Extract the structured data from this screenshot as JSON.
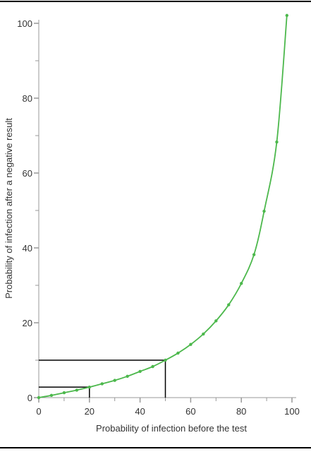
{
  "chart_data": {
    "type": "line",
    "title": "",
    "xlabel": "Probability of infection before the test",
    "ylabel": "Probability of infection after a negative result",
    "xlim": [
      0,
      100
    ],
    "ylim": [
      0,
      100
    ],
    "x_ticks": [
      0,
      20,
      40,
      60,
      80,
      100
    ],
    "y_ticks": [
      0,
      20,
      40,
      60,
      80,
      100
    ],
    "x_tick_labels": [
      "0",
      "20",
      "40",
      "60",
      "80",
      "100"
    ],
    "y_tick_labels": [
      "0",
      "20",
      "40",
      "60",
      "80",
      "100"
    ],
    "grid": false,
    "legend": "none",
    "series": [
      {
        "color": "#4cb84c",
        "x": [
          0,
          5,
          10,
          15,
          20,
          25,
          30,
          35,
          40,
          45,
          50,
          55,
          60,
          65,
          70,
          75,
          80,
          85,
          89,
          94,
          98
        ],
        "y": [
          0,
          0.6,
          1.3,
          2.0,
          2.8,
          3.7,
          4.6,
          5.7,
          7.0,
          8.3,
          10.0,
          11.9,
          14.2,
          17.0,
          20.5,
          24.8,
          30.5,
          38.2,
          49.8,
          68.3,
          102.1
        ]
      }
    ],
    "reference_lines": [
      {
        "x": 20,
        "y": 2.8,
        "color": "#000000"
      },
      {
        "x": 50,
        "y": 10,
        "color": "#000000"
      }
    ],
    "frame_color": "#000000",
    "axis_color": "#999999"
  }
}
